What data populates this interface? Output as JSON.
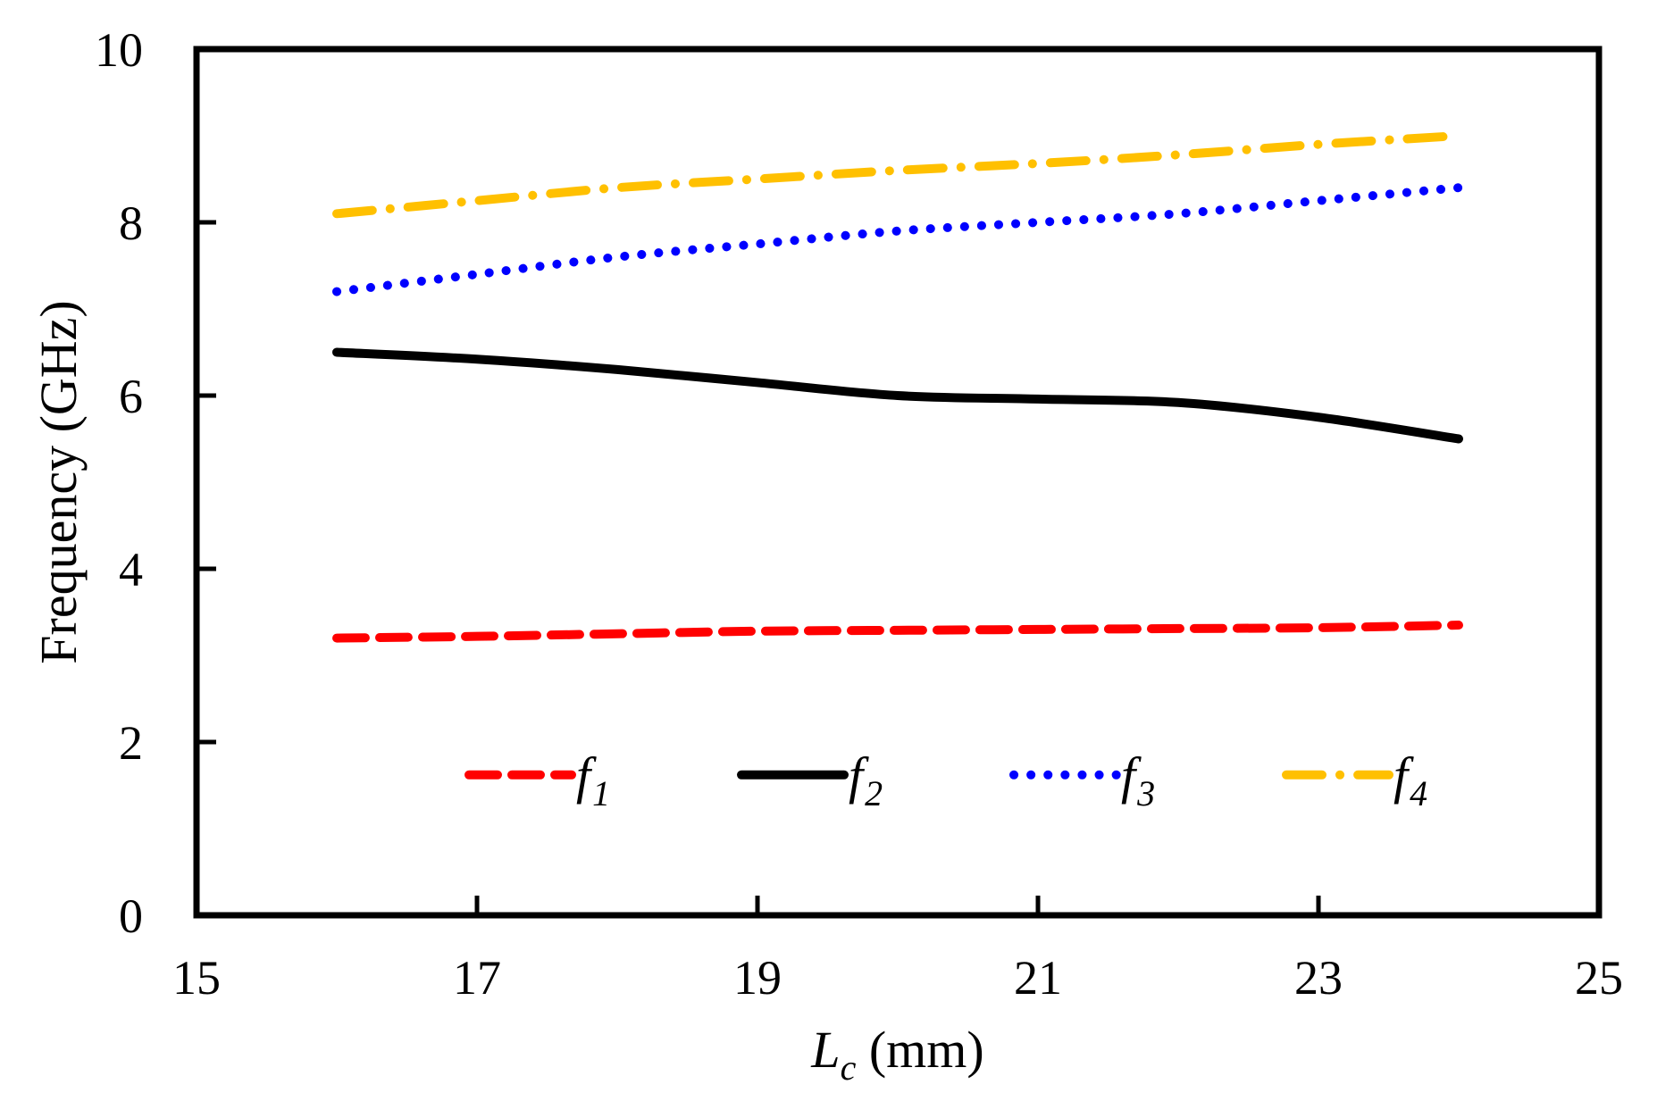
{
  "chart_data": {
    "type": "line",
    "title": "",
    "xlabel": {
      "main": "L",
      "sub": "c",
      "unit": " (mm)"
    },
    "ylabel": "Frequency (GHz)",
    "xlim": [
      15,
      25
    ],
    "ylim": [
      0,
      10
    ],
    "xticks": [
      15,
      17,
      19,
      21,
      23,
      25
    ],
    "yticks": [
      0,
      2,
      4,
      6,
      8,
      10
    ],
    "grid": false,
    "legend_position": "bottom-center",
    "series": [
      {
        "name": "f1",
        "label_main": "f",
        "label_sub": "1",
        "color": "#ff0000",
        "style": "dashed",
        "x": [
          16,
          17,
          18,
          19,
          20,
          21,
          22,
          23,
          24
        ],
        "y": [
          3.2,
          3.22,
          3.25,
          3.28,
          3.29,
          3.3,
          3.31,
          3.32,
          3.35
        ]
      },
      {
        "name": "f2",
        "label_main": "f",
        "label_sub": "2",
        "color": "#000000",
        "style": "solid",
        "x": [
          16,
          17,
          18,
          19,
          20,
          21,
          22,
          23,
          24
        ],
        "y": [
          6.5,
          6.42,
          6.3,
          6.15,
          6.0,
          5.96,
          5.92,
          5.75,
          5.5
        ]
      },
      {
        "name": "f3",
        "label_main": "f",
        "label_sub": "3",
        "color": "#0000ff",
        "style": "dotted",
        "x": [
          16,
          17,
          18,
          19,
          20,
          21,
          22,
          23,
          24
        ],
        "y": [
          7.2,
          7.4,
          7.6,
          7.75,
          7.9,
          8.0,
          8.1,
          8.25,
          8.4
        ]
      },
      {
        "name": "f4",
        "label_main": "f",
        "label_sub": "4",
        "color": "#ffc000",
        "style": "dashdot",
        "x": [
          16,
          17,
          18,
          19,
          20,
          21,
          22,
          23,
          24
        ],
        "y": [
          8.1,
          8.25,
          8.4,
          8.5,
          8.6,
          8.68,
          8.78,
          8.9,
          9.0
        ]
      }
    ]
  }
}
